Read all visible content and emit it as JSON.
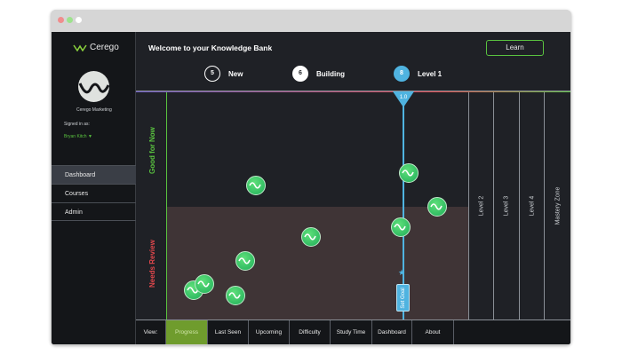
{
  "app": {
    "brand": "Cerego",
    "org": "Cerego Marketing",
    "signed_in_label": "Signed in as:",
    "user": "Bryan Kitch ▼"
  },
  "sidebar": {
    "items": [
      {
        "label": "Dashboard",
        "active": true
      },
      {
        "label": "Courses"
      },
      {
        "label": "Admin"
      }
    ]
  },
  "header": {
    "title": "Welcome to your Knowledge Bank",
    "learn_label": "Learn",
    "stats": [
      {
        "count": "5",
        "label": "New"
      },
      {
        "count": "6",
        "label": "Building"
      },
      {
        "count": "8",
        "label": "Level 1"
      }
    ]
  },
  "chart": {
    "good_label": "Good for Now",
    "review_label": "Needs Review",
    "marker": "1.0",
    "set_goal": "Set Goal",
    "levels": [
      "Level 2",
      "Level 3",
      "Level 4",
      "Mastery Zone"
    ],
    "colors": {
      "good": "#59c23f",
      "review": "#e0474c",
      "marker": "#4fb3e0"
    }
  },
  "bottom": {
    "view_label": "View:",
    "tabs": [
      "Progress",
      "Last Seen",
      "Upcoming",
      "Difficulty",
      "Study Time",
      "Dashboard",
      "About"
    ],
    "active": "Progress"
  }
}
